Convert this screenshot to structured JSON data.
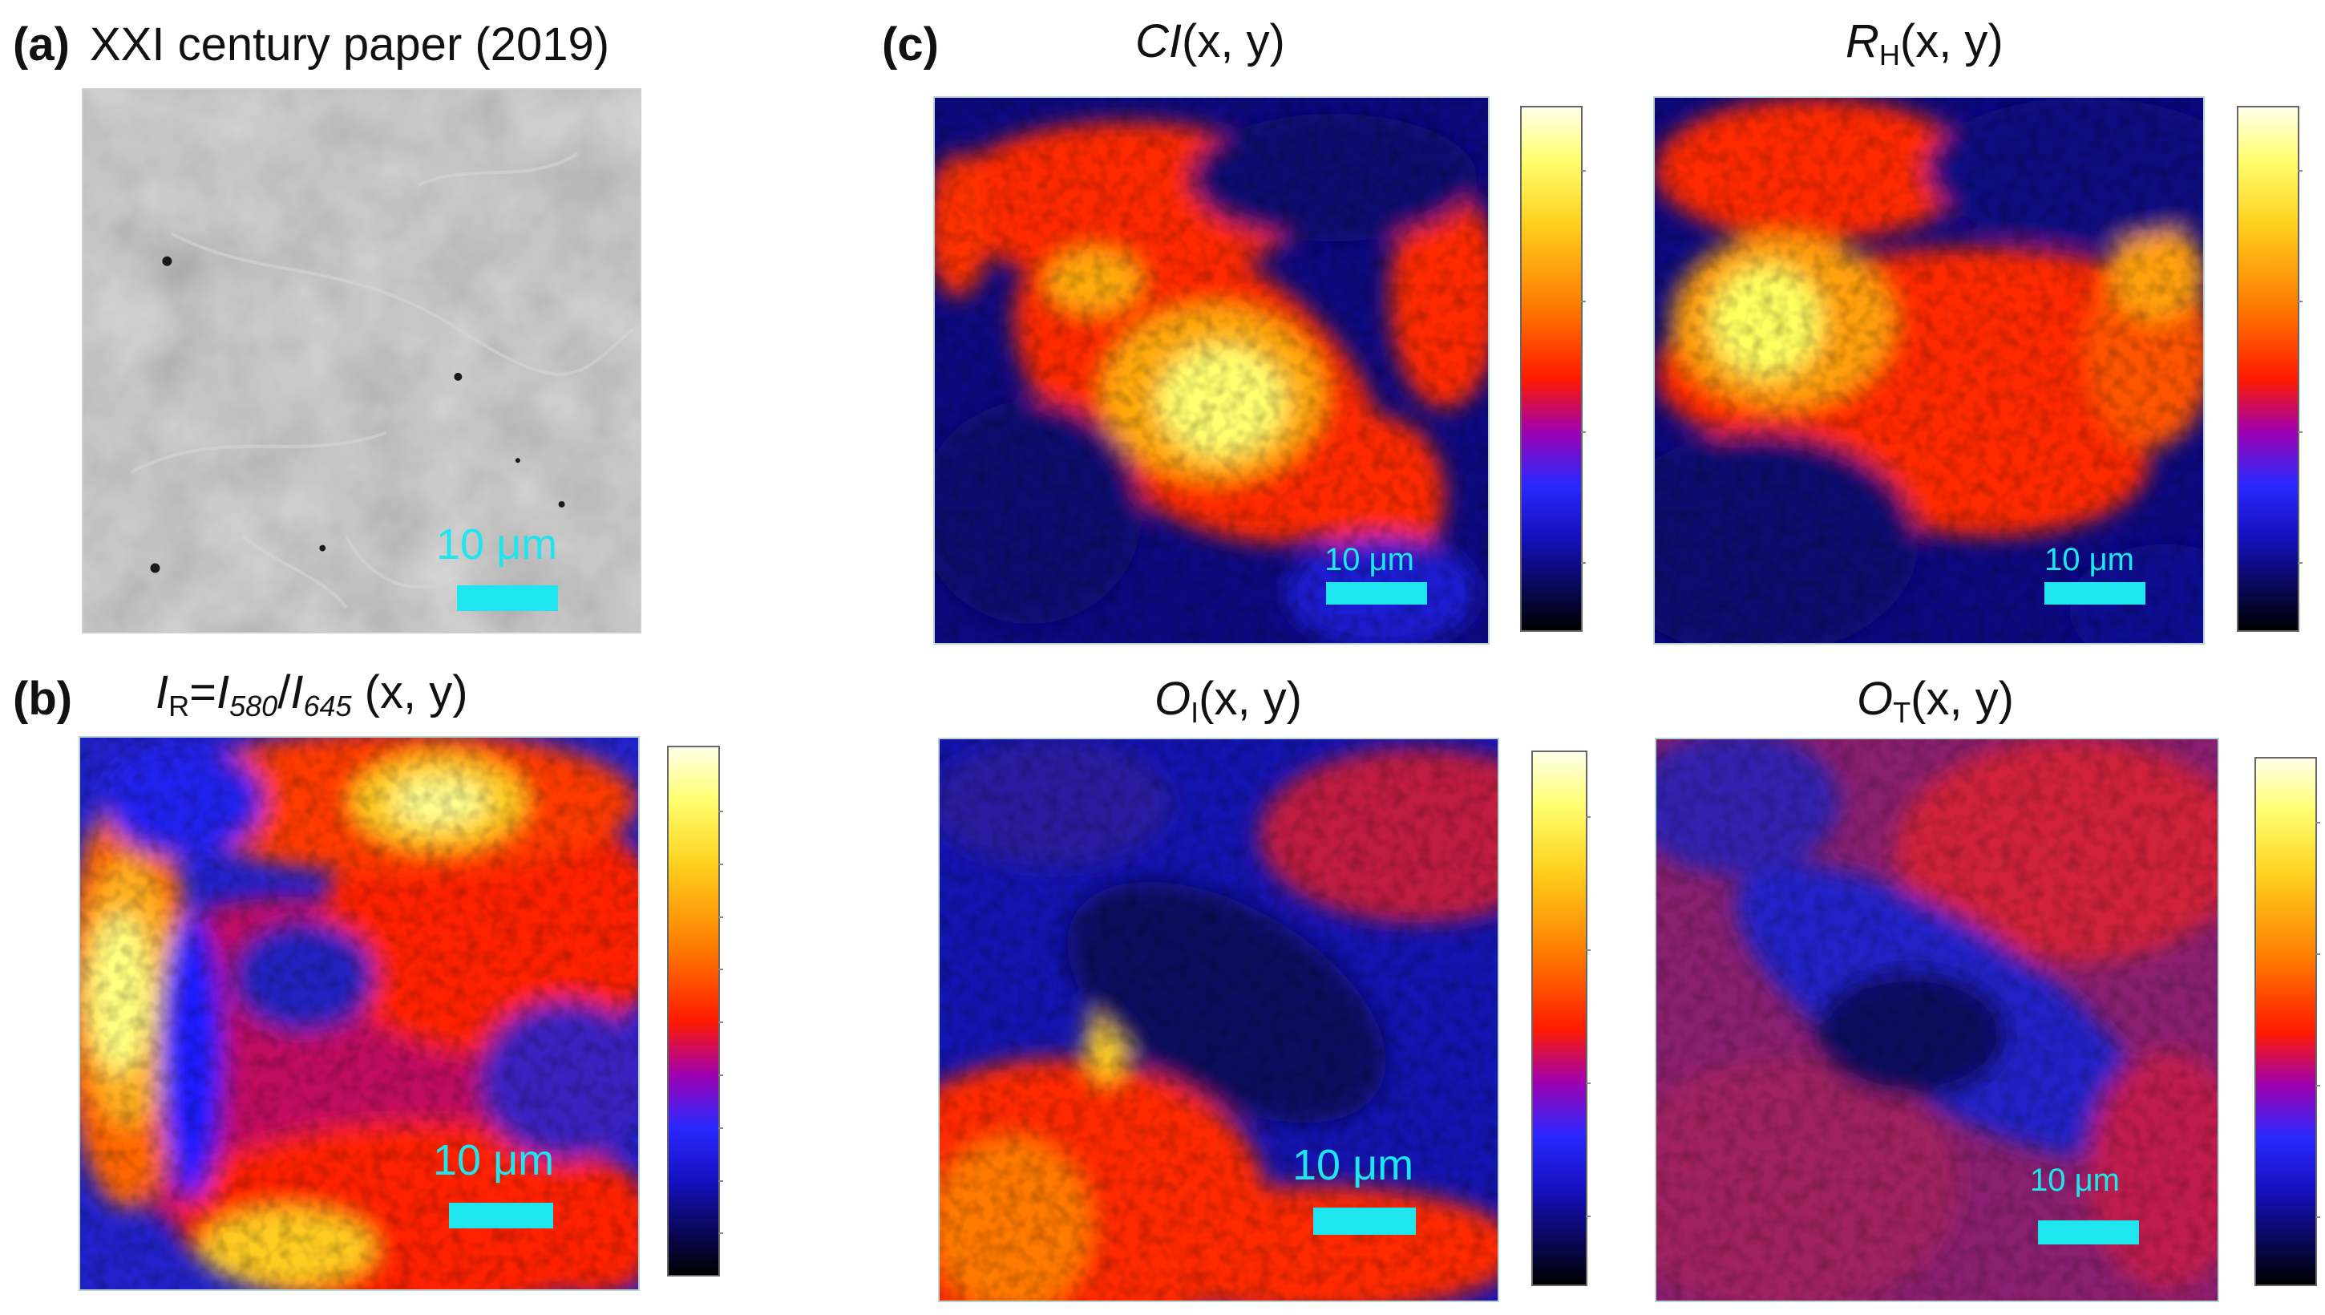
{
  "figure": {
    "panel_a": {
      "label": "(a)",
      "title": "XXI century paper (2019)",
      "scale": "10 μm"
    },
    "panel_b": {
      "label": "(b)",
      "title_I": "I",
      "title_R_sub": "R",
      "title_eq": "=",
      "title_I580": "I",
      "sub_580": "580",
      "title_slash": "/",
      "title_I645": "I",
      "sub_645": "645",
      "title_xy": " (x, y)",
      "scale": "10 μm"
    },
    "panel_c": {
      "label": "(c)",
      "ci": {
        "title_main": "CI",
        "title_xy": "(x, y)",
        "scale": "10 μm"
      },
      "rh": {
        "title_main": "R",
        "title_sub": "H",
        "title_xy": "(x, y)",
        "scale": "10 μm"
      },
      "oi": {
        "title_main": "O",
        "title_sub": "I",
        "title_xy": "(x, y)",
        "scale": "10 μm"
      },
      "ot": {
        "title_main": "O",
        "title_sub": "T",
        "title_xy": "(x, y)",
        "scale": "10 μm"
      }
    }
  }
}
